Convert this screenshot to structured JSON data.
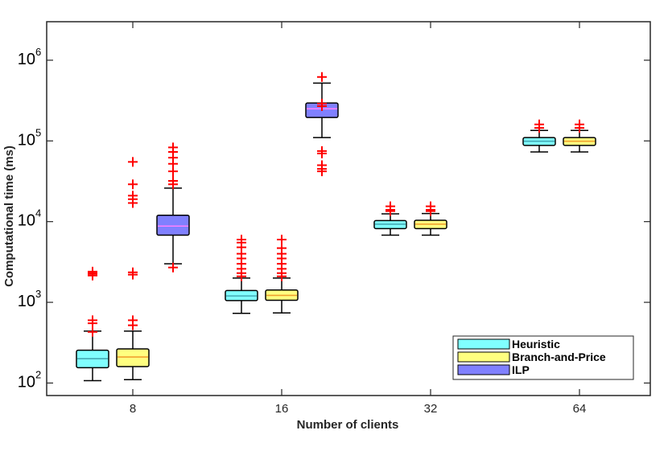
{
  "chart_data": {
    "type": "box",
    "title": "",
    "xlabel": "Number of clients",
    "ylabel": "Computational time (ms)",
    "yscale": "log",
    "ylim": [
      70,
      3000000
    ],
    "y_ticks": [
      {
        "value": 100,
        "base": "10",
        "exp": "2"
      },
      {
        "value": 1000,
        "base": "10",
        "exp": "3"
      },
      {
        "value": 10000,
        "base": "10",
        "exp": "4"
      },
      {
        "value": 100000,
        "base": "10",
        "exp": "5"
      },
      {
        "value": 1000000,
        "base": "10",
        "exp": "6"
      }
    ],
    "categories": [
      "8",
      "16",
      "32",
      "64"
    ],
    "series": [
      {
        "name": "Heuristic",
        "color": "#80ffff",
        "median_color": "#45a9b5",
        "boxes": [
          {
            "category": "8",
            "whisker_low": 107,
            "q1": 155,
            "median": 200,
            "q3": 255,
            "whisker_high": 440,
            "outliers": [
              430,
              550,
              600,
              2150,
              2250,
              2300,
              2400
            ]
          },
          {
            "category": "16",
            "whisker_low": 730,
            "q1": 1050,
            "median": 1200,
            "q3": 1400,
            "whisker_high": 2000,
            "outliers": [
              2100,
              2300,
              2600,
              3000,
              3500,
              4000,
              4800,
              5500,
              6000
            ]
          },
          {
            "category": "32",
            "whisker_low": 6800,
            "q1": 8200,
            "median": 9300,
            "q3": 10300,
            "whisker_high": 12500,
            "outliers": [
              13500,
              14000,
              15500
            ]
          },
          {
            "category": "64",
            "whisker_low": 73000,
            "q1": 88000,
            "median": 99000,
            "q3": 110000,
            "whisker_high": 135000,
            "outliers": [
              145000,
              160000
            ]
          }
        ]
      },
      {
        "name": "Branch-and-Price",
        "color": "#ffff80",
        "median_color": "#f0a030",
        "boxes": [
          {
            "category": "8",
            "whisker_low": 110,
            "q1": 160,
            "median": 210,
            "q3": 265,
            "whisker_high": 440,
            "outliers": [
              520,
              600,
              2200,
              2350,
              17000,
              19000,
              21000,
              29000,
              55000
            ]
          },
          {
            "category": "16",
            "whisker_low": 740,
            "q1": 1060,
            "median": 1220,
            "q3": 1420,
            "whisker_high": 2000,
            "outliers": [
              2100,
              2300,
              2600,
              3000,
              3500,
              4000,
              4700,
              6000
            ]
          },
          {
            "category": "32",
            "whisker_low": 6800,
            "q1": 8200,
            "median": 9300,
            "q3": 10400,
            "whisker_high": 12600,
            "outliers": [
              13500,
              14000,
              15500
            ]
          },
          {
            "category": "64",
            "whisker_low": 73000,
            "q1": 88000,
            "median": 99000,
            "q3": 110000,
            "whisker_high": 135000,
            "outliers": [
              145000,
              160000
            ]
          }
        ]
      },
      {
        "name": "ILP",
        "color": "#8080ff",
        "median_color": "#ff80ff",
        "boxes": [
          {
            "category": "8",
            "whisker_low": 3000,
            "q1": 6800,
            "median": 8800,
            "q3": 12000,
            "whisker_high": 26000,
            "outliers": [
              2700,
              29000,
              32000,
              42000,
              52000,
              62000,
              73000,
              83000
            ]
          },
          {
            "category": "16",
            "whisker_low": 110000,
            "q1": 195000,
            "median": 250000,
            "q3": 295000,
            "whisker_high": 520000,
            "outliers": [
              620000,
              270000,
              290000,
              75000,
              70000,
              50000,
              45000,
              42000
            ]
          },
          null,
          null
        ]
      }
    ],
    "legend": {
      "position": "bottom-right",
      "entries": [
        "Heuristic",
        "Branch-and-Price",
        "ILP"
      ]
    },
    "outlier_color": "#ff0000",
    "grid": false
  }
}
